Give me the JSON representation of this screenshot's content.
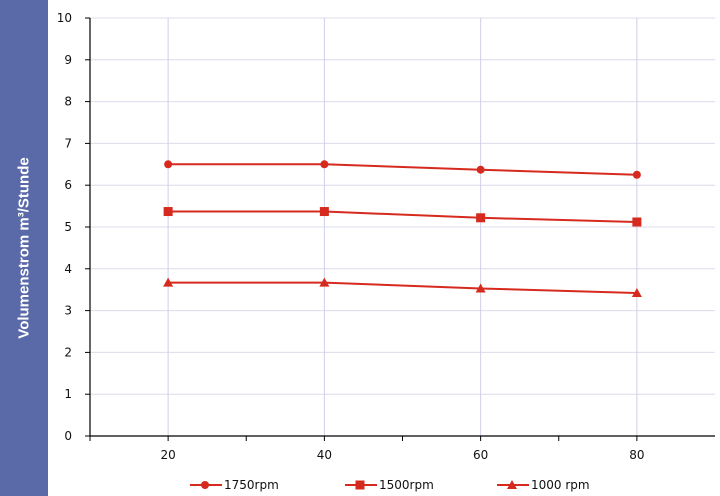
{
  "chart_data": {
    "type": "line",
    "ylabel": "Volumenstrom m³/Stunde",
    "x": [
      20,
      40,
      60,
      80
    ],
    "series": [
      {
        "name": "1750rpm",
        "marker": "circle",
        "values": [
          6.5,
          6.5,
          6.37,
          6.25
        ]
      },
      {
        "name": "1500rpm",
        "marker": "square",
        "values": [
          5.37,
          5.37,
          5.22,
          5.12
        ]
      },
      {
        "name": "1000 rpm",
        "marker": "triangle",
        "values": [
          3.67,
          3.67,
          3.53,
          3.42
        ]
      }
    ],
    "xticks": [
      20,
      40,
      60,
      80
    ],
    "yticks": [
      0,
      1,
      2,
      3,
      4,
      5,
      6,
      7,
      8,
      9,
      10
    ],
    "xlim": [
      10,
      90
    ],
    "ylim": [
      0,
      10
    ],
    "grid": {
      "horizontal": true,
      "vertical": true
    },
    "legend_position": "bottom",
    "colors": {
      "line": "#d62a1e",
      "ylabel_bg": "#5a6aa8",
      "grid_h": "#dcdcec",
      "grid_v": "#cfcfe8"
    }
  }
}
